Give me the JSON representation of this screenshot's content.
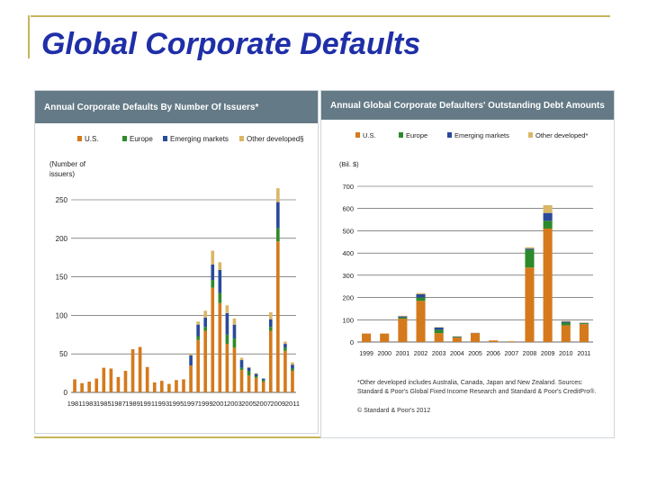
{
  "slide": {
    "title": "Global Corporate Defaults"
  },
  "colors": {
    "us": "#d47a1c",
    "europe": "#2d8a2a",
    "emerging": "#2a4a9a",
    "other": "#d9b766",
    "header_bg": "#647a86",
    "title": "#1f2fa8",
    "rule": "#c8b45a"
  },
  "chart_data": [
    {
      "type": "bar",
      "stacked": true,
      "title": "Annual Corporate Defaults By Number Of Issuers*",
      "ylabel": "(Number of issuers)",
      "xlabel": "",
      "ylim": [
        0,
        250
      ],
      "yticks": [
        0,
        50,
        100,
        150,
        200,
        250
      ],
      "grid": true,
      "legend_position": "top",
      "x": [
        1981,
        1982,
        1983,
        1984,
        1985,
        1986,
        1987,
        1988,
        1989,
        1990,
        1991,
        1992,
        1993,
        1994,
        1995,
        1996,
        1997,
        1998,
        1999,
        2000,
        2001,
        2002,
        2003,
        2004,
        2005,
        2006,
        2007,
        2008,
        2009,
        2010,
        2011
      ],
      "xtick_labels": [
        "1981",
        "1983",
        "1985",
        "1987",
        "1989",
        "1991",
        "1993",
        "1995",
        "1997",
        "1999",
        "2001",
        "2003",
        "2005",
        "2007",
        "2009",
        "2011"
      ],
      "series": [
        {
          "name": "U.S.",
          "values": [
            17,
            12,
            14,
            18,
            32,
            31,
            20,
            28,
            56,
            59,
            33,
            13,
            15,
            11,
            16,
            17,
            35,
            68,
            80,
            136,
            116,
            63,
            58,
            29,
            22,
            19,
            14,
            80,
            196,
            54,
            28
          ]
        },
        {
          "name": "Europe",
          "values": [
            0,
            0,
            0,
            0,
            0,
            0,
            0,
            0,
            0,
            0,
            0,
            0,
            0,
            0,
            0,
            0,
            0,
            5,
            5,
            10,
            13,
            12,
            12,
            3,
            6,
            2,
            2,
            5,
            17,
            4,
            3
          ]
        },
        {
          "name": "Emerging markets",
          "values": [
            0,
            0,
            0,
            0,
            0,
            0,
            0,
            0,
            0,
            0,
            0,
            0,
            0,
            0,
            0,
            0,
            13,
            15,
            12,
            20,
            30,
            28,
            18,
            10,
            4,
            3,
            2,
            10,
            34,
            5,
            5
          ]
        },
        {
          "name": "Other developed§",
          "values": [
            0,
            0,
            0,
            0,
            0,
            0,
            0,
            0,
            0,
            0,
            0,
            0,
            0,
            0,
            0,
            0,
            2,
            4,
            9,
            18,
            10,
            10,
            8,
            3,
            1,
            1,
            0,
            9,
            18,
            3,
            3
          ]
        }
      ]
    },
    {
      "type": "bar",
      "stacked": true,
      "title": "Annual Global Corporate Defaulters' Outstanding Debt Amounts",
      "ylabel": "(Bil. $)",
      "xlabel": "",
      "ylim": [
        0,
        700
      ],
      "yticks": [
        0,
        100,
        200,
        300,
        400,
        500,
        600,
        700
      ],
      "grid": true,
      "legend_position": "top",
      "x": [
        1999,
        2000,
        2001,
        2002,
        2003,
        2004,
        2005,
        2006,
        2007,
        2008,
        2009,
        2010,
        2011
      ],
      "xtick_labels": [
        "1999",
        "2000",
        "2001",
        "2002",
        "2003",
        "2004",
        "2005",
        "2006",
        "2007",
        "2008",
        "2009",
        "2010",
        "2011"
      ],
      "series": [
        {
          "name": "U.S.",
          "values": [
            38,
            38,
            105,
            185,
            40,
            20,
            40,
            7,
            3,
            335,
            510,
            75,
            80
          ]
        },
        {
          "name": "Europe",
          "values": [
            0,
            0,
            5,
            15,
            15,
            3,
            0,
            0,
            0,
            80,
            35,
            12,
            4
          ]
        },
        {
          "name": "Emerging markets",
          "values": [
            0,
            0,
            5,
            15,
            10,
            2,
            1,
            0,
            0,
            5,
            35,
            5,
            2
          ]
        },
        {
          "name": "Other developed*",
          "values": [
            0,
            0,
            3,
            5,
            2,
            1,
            0,
            0,
            0,
            6,
            35,
            3,
            2
          ]
        }
      ]
    }
  ],
  "notes": {
    "footnote": "*Other developed includes Australia, Canada, Japan and New Zealand. Sources: Standard & Poor's Global Fixed Income Research and Standard & Poor's CreditPro®.",
    "copyright": "© Standard & Poor's 2012"
  }
}
